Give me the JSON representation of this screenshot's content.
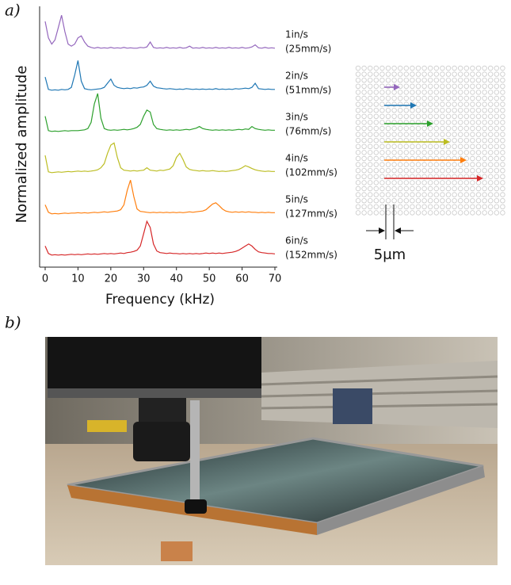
{
  "panel_labels": [
    "a)",
    "b)"
  ],
  "scale_bar_label": "5μm",
  "chart_data": {
    "type": "line",
    "xlabel": "Frequency (kHz)",
    "ylabel": "Normalized amplitude",
    "xlim": [
      0,
      70
    ],
    "xticks": [
      0,
      10,
      20,
      30,
      40,
      50,
      60,
      70
    ],
    "ylim": [
      0,
      1
    ],
    "x": [
      0,
      1,
      2,
      3,
      4,
      5,
      6,
      7,
      8,
      9,
      10,
      11,
      12,
      13,
      14,
      15,
      16,
      17,
      18,
      19,
      20,
      21,
      22,
      23,
      24,
      25,
      26,
      27,
      28,
      29,
      30,
      31,
      32,
      33,
      34,
      35,
      36,
      37,
      38,
      39,
      40,
      41,
      42,
      43,
      44,
      45,
      46,
      47,
      48,
      49,
      50,
      51,
      52,
      53,
      54,
      55,
      56,
      57,
      58,
      59,
      60,
      61,
      62,
      63,
      64,
      65,
      66,
      67,
      68,
      69,
      70
    ],
    "series": [
      {
        "name": "1in/s",
        "name_metric": "(25mm/s)",
        "color": "#9467bd",
        "values": [
          0.75,
          0.35,
          0.2,
          0.3,
          0.6,
          0.9,
          0.5,
          0.2,
          0.15,
          0.2,
          0.35,
          0.4,
          0.25,
          0.15,
          0.12,
          0.1,
          0.12,
          0.1,
          0.11,
          0.1,
          0.12,
          0.1,
          0.11,
          0.1,
          0.12,
          0.1,
          0.11,
          0.1,
          0.1,
          0.12,
          0.11,
          0.13,
          0.25,
          0.12,
          0.1,
          0.11,
          0.1,
          0.12,
          0.1,
          0.11,
          0.1,
          0.12,
          0.1,
          0.11,
          0.15,
          0.1,
          0.11,
          0.1,
          0.12,
          0.1,
          0.11,
          0.1,
          0.12,
          0.1,
          0.11,
          0.1,
          0.12,
          0.1,
          0.11,
          0.1,
          0.12,
          0.1,
          0.11,
          0.13,
          0.18,
          0.11,
          0.1,
          0.12,
          0.1,
          0.11,
          0.1
        ]
      },
      {
        "name": "2in/s",
        "name_metric": "(51mm/s)",
        "color": "#1f77b4",
        "values": [
          0.4,
          0.1,
          0.08,
          0.09,
          0.08,
          0.1,
          0.09,
          0.1,
          0.15,
          0.45,
          0.8,
          0.3,
          0.12,
          0.1,
          0.09,
          0.1,
          0.11,
          0.12,
          0.15,
          0.25,
          0.35,
          0.2,
          0.15,
          0.13,
          0.12,
          0.13,
          0.12,
          0.14,
          0.13,
          0.15,
          0.16,
          0.2,
          0.3,
          0.18,
          0.14,
          0.13,
          0.12,
          0.11,
          0.12,
          0.11,
          0.1,
          0.11,
          0.1,
          0.12,
          0.11,
          0.1,
          0.11,
          0.1,
          0.11,
          0.1,
          0.11,
          0.1,
          0.12,
          0.1,
          0.11,
          0.1,
          0.11,
          0.1,
          0.12,
          0.11,
          0.12,
          0.13,
          0.12,
          0.15,
          0.25,
          0.12,
          0.11,
          0.1,
          0.11,
          0.1,
          0.1
        ]
      },
      {
        "name": "3in/s",
        "name_metric": "(76mm/s)",
        "color": "#2ca02c",
        "values": [
          0.45,
          0.1,
          0.08,
          0.09,
          0.08,
          0.09,
          0.1,
          0.09,
          0.1,
          0.1,
          0.1,
          0.11,
          0.12,
          0.15,
          0.3,
          0.75,
          1.0,
          0.4,
          0.15,
          0.12,
          0.11,
          0.12,
          0.11,
          0.12,
          0.13,
          0.12,
          0.13,
          0.15,
          0.18,
          0.25,
          0.45,
          0.6,
          0.55,
          0.25,
          0.15,
          0.13,
          0.12,
          0.11,
          0.12,
          0.11,
          0.12,
          0.11,
          0.12,
          0.13,
          0.12,
          0.14,
          0.16,
          0.2,
          0.15,
          0.13,
          0.12,
          0.11,
          0.12,
          0.11,
          0.12,
          0.11,
          0.12,
          0.11,
          0.12,
          0.13,
          0.12,
          0.14,
          0.13,
          0.2,
          0.15,
          0.13,
          0.12,
          0.11,
          0.12,
          0.11,
          0.11
        ]
      },
      {
        "name": "4in/s",
        "name_metric": "(102mm/s)",
        "color": "#bcbd22",
        "values": [
          0.5,
          0.1,
          0.08,
          0.09,
          0.1,
          0.09,
          0.1,
          0.11,
          0.1,
          0.11,
          0.12,
          0.11,
          0.12,
          0.11,
          0.12,
          0.13,
          0.15,
          0.2,
          0.3,
          0.55,
          0.75,
          0.8,
          0.45,
          0.2,
          0.14,
          0.13,
          0.12,
          0.13,
          0.12,
          0.13,
          0.14,
          0.2,
          0.14,
          0.13,
          0.12,
          0.14,
          0.13,
          0.15,
          0.17,
          0.25,
          0.45,
          0.55,
          0.4,
          0.22,
          0.16,
          0.14,
          0.13,
          0.12,
          0.13,
          0.12,
          0.12,
          0.13,
          0.12,
          0.11,
          0.12,
          0.11,
          0.12,
          0.13,
          0.14,
          0.16,
          0.2,
          0.25,
          0.22,
          0.18,
          0.15,
          0.13,
          0.12,
          0.11,
          0.12,
          0.11,
          0.11
        ]
      },
      {
        "name": "5in/s",
        "name_metric": "(127mm/s)",
        "color": "#ff7f0e",
        "values": [
          0.3,
          0.12,
          0.08,
          0.09,
          0.08,
          0.09,
          0.1,
          0.09,
          0.1,
          0.1,
          0.11,
          0.1,
          0.11,
          0.1,
          0.11,
          0.12,
          0.11,
          0.12,
          0.13,
          0.12,
          0.13,
          0.14,
          0.15,
          0.18,
          0.3,
          0.65,
          0.9,
          0.5,
          0.2,
          0.14,
          0.13,
          0.12,
          0.11,
          0.12,
          0.11,
          0.12,
          0.11,
          0.12,
          0.11,
          0.12,
          0.11,
          0.12,
          0.11,
          0.12,
          0.13,
          0.12,
          0.13,
          0.14,
          0.15,
          0.18,
          0.25,
          0.32,
          0.35,
          0.28,
          0.2,
          0.15,
          0.13,
          0.12,
          0.13,
          0.12,
          0.13,
          0.12,
          0.13,
          0.12,
          0.12,
          0.11,
          0.12,
          0.11,
          0.12,
          0.11,
          0.11
        ]
      },
      {
        "name": "6in/s",
        "name_metric": "(152mm/s)",
        "color": "#d62728",
        "values": [
          0.3,
          0.12,
          0.08,
          0.09,
          0.08,
          0.09,
          0.08,
          0.09,
          0.1,
          0.09,
          0.1,
          0.09,
          0.1,
          0.11,
          0.1,
          0.11,
          0.1,
          0.11,
          0.12,
          0.11,
          0.12,
          0.11,
          0.12,
          0.13,
          0.12,
          0.14,
          0.15,
          0.17,
          0.2,
          0.3,
          0.6,
          0.9,
          0.75,
          0.35,
          0.18,
          0.14,
          0.13,
          0.12,
          0.13,
          0.12,
          0.12,
          0.11,
          0.12,
          0.11,
          0.12,
          0.11,
          0.12,
          0.11,
          0.12,
          0.13,
          0.12,
          0.13,
          0.12,
          0.13,
          0.12,
          0.13,
          0.14,
          0.15,
          0.17,
          0.2,
          0.25,
          0.3,
          0.35,
          0.3,
          0.22,
          0.16,
          0.14,
          0.13,
          0.12,
          0.12,
          0.11
        ]
      }
    ]
  }
}
